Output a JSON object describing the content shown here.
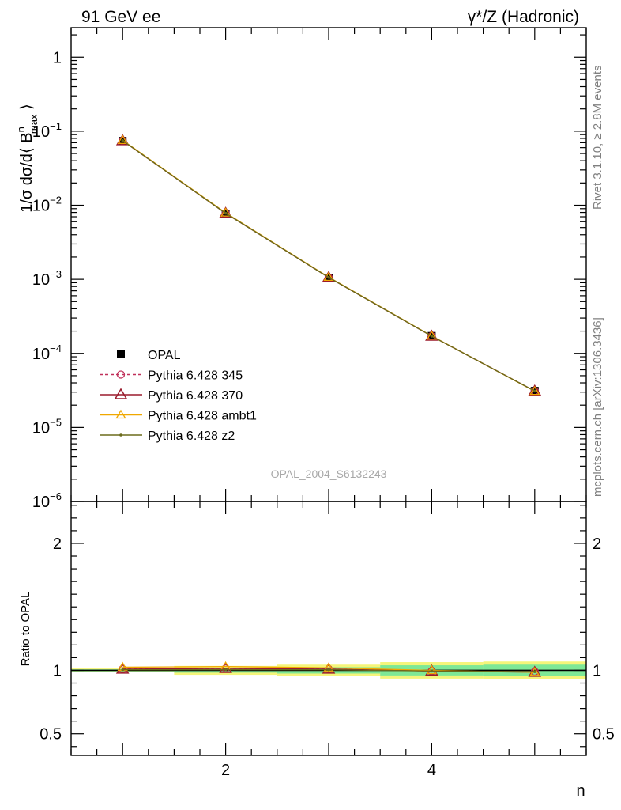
{
  "header": {
    "left": "91 GeV ee",
    "right": "γ*/Z (Hadronic)"
  },
  "side_labels": {
    "rivet": "Rivet 3.1.10, ≥ 2.8M events",
    "mcplots": "mcplots.cern.ch [arXiv:1306.3436]"
  },
  "watermark": "OPAL_2004_S6132243",
  "main_ylabel": "1/σ dσ/d⟨ B^n_max ⟩",
  "ratio_ylabel": "Ratio to OPAL",
  "xlabel": "n",
  "colors": {
    "opal": "#000000",
    "p345": "#c0305a",
    "p370": "#9b1b2d",
    "ambt1": "#f0a800",
    "z2": "#6b6b1c",
    "band_yellow": "#f5f57a",
    "band_green": "#7ee896"
  },
  "chart_data": [
    {
      "type": "line",
      "panel": "main",
      "scale_y": "log",
      "xlim": [
        0.5,
        5.5
      ],
      "ylim": [
        1e-06,
        2.5
      ],
      "x_ticks": [
        2,
        4
      ],
      "y_ticks": [
        "1",
        "10^-1",
        "10^-2",
        "10^-3",
        "10^-4",
        "10^-5",
        "10^-6"
      ],
      "x": [
        1,
        2,
        3,
        4,
        5
      ],
      "series": [
        {
          "name": "OPAL",
          "values": [
            0.074,
            0.0077,
            0.00105,
            0.000172,
            3.12e-05
          ]
        },
        {
          "name": "Pythia 6.428 345",
          "values": [
            0.0745,
            0.0078,
            0.00106,
            0.000171,
            3.1e-05
          ]
        },
        {
          "name": "Pythia 6.428 370",
          "values": [
            0.0745,
            0.0078,
            0.00106,
            0.000171,
            3.1e-05
          ]
        },
        {
          "name": "Pythia 6.428 ambt1",
          "values": [
            0.0755,
            0.0079,
            0.00107,
            0.000172,
            3.08e-05
          ]
        },
        {
          "name": "Pythia 6.428 z2",
          "values": [
            0.0745,
            0.0078,
            0.00106,
            0.000171,
            3.1e-05
          ]
        }
      ],
      "legend": "lower-left"
    },
    {
      "type": "line",
      "panel": "ratio",
      "ylabel": "Ratio to OPAL",
      "xlabel": "n",
      "xlim": [
        0.5,
        5.5
      ],
      "ylim": [
        0.33,
        2.33
      ],
      "y_ticks": [
        0.5,
        1,
        2
      ],
      "x_ticks": [
        2,
        4
      ],
      "x": [
        1,
        2,
        3,
        4,
        5
      ],
      "bands": {
        "yellow_halfwidth": [
          0.015,
          0.035,
          0.045,
          0.065,
          0.07
        ],
        "green_halfwidth": [
          0.008,
          0.018,
          0.025,
          0.04,
          0.045
        ]
      },
      "series": [
        {
          "name": "Pythia 6.428 345",
          "values": [
            1.01,
            1.015,
            1.01,
            0.995,
            0.99
          ]
        },
        {
          "name": "Pythia 6.428 370",
          "values": [
            1.01,
            1.015,
            1.01,
            0.995,
            0.985
          ]
        },
        {
          "name": "Pythia 6.428 ambt1",
          "values": [
            1.025,
            1.03,
            1.02,
            1.0,
            0.985
          ]
        },
        {
          "name": "Pythia 6.428 z2",
          "values": [
            1.005,
            1.005,
            1.005,
            0.995,
            0.99
          ]
        }
      ]
    }
  ]
}
